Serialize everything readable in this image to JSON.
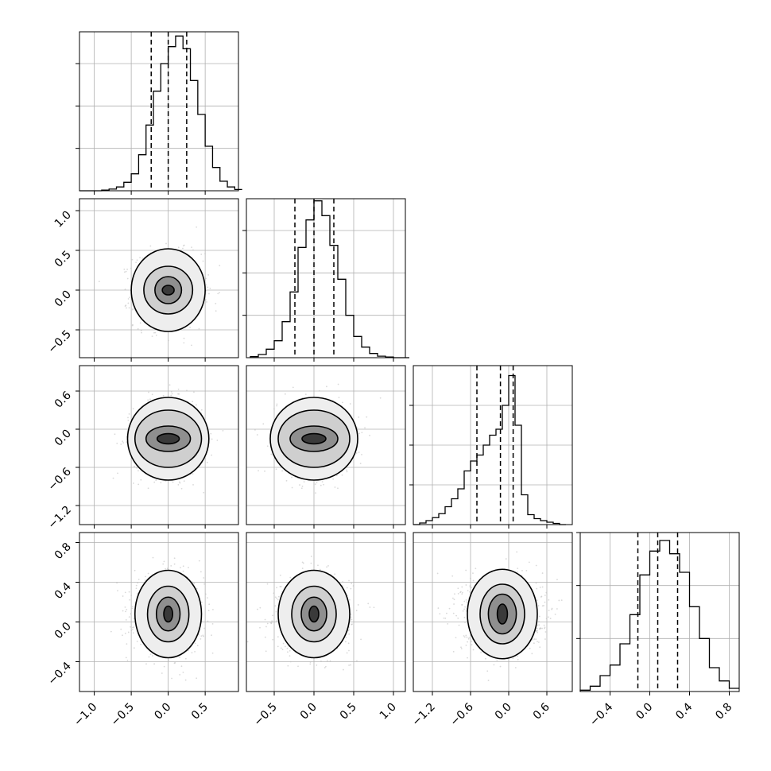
{
  "chart_data": {
    "type": "corner",
    "variables": 4,
    "histograms": [
      {
        "edges": [
          -1.2,
          -1.1,
          -1.0,
          -0.9,
          -0.8,
          -0.7,
          -0.6,
          -0.5,
          -0.4,
          -0.3,
          -0.2,
          -0.1,
          0.0,
          0.1,
          0.2,
          0.3,
          0.4,
          0.5,
          0.6,
          0.7,
          0.8,
          0.9,
          1.0
        ],
        "counts": [
          0,
          0,
          0,
          0.3,
          0.8,
          1.8,
          4,
          8,
          17,
          31,
          47,
          60,
          68,
          73,
          67,
          52,
          36,
          21,
          11,
          4.5,
          1.8,
          0.6
        ],
        "quantile_lines": [
          -0.23,
          0.0,
          0.25
        ],
        "range": [
          -1.2,
          0.95
        ],
        "ylim": [
          0,
          75
        ],
        "x_ticks": [
          -1.0,
          -0.5,
          0.0,
          0.5
        ],
        "x_tick_labels": [
          "−1.0",
          "−0.5",
          "0.0",
          "0.5"
        ],
        "y_ticks": [
          20,
          40,
          60
        ]
      },
      {
        "edges": [
          -0.8,
          -0.7,
          -0.6,
          -0.5,
          -0.4,
          -0.3,
          -0.2,
          -0.1,
          0.0,
          0.1,
          0.2,
          0.3,
          0.4,
          0.5,
          0.6,
          0.7,
          0.8,
          0.9,
          1.0,
          1.1,
          1.2
        ],
        "counts": [
          0.5,
          1.5,
          4,
          8,
          17,
          31,
          52,
          65,
          74,
          67,
          53,
          37,
          20,
          10,
          5,
          2,
          0.7,
          0.3,
          0,
          0
        ],
        "quantile_lines": [
          -0.24,
          0.0,
          0.25
        ],
        "range": [
          -0.85,
          1.15
        ],
        "ylim": [
          0,
          75
        ],
        "x_ticks": [
          -0.5,
          0.0,
          0.5,
          1.0
        ],
        "x_tick_labels": [
          "−0.5",
          "0.0",
          "0.5",
          "1.0"
        ],
        "y_ticks": [
          20,
          40,
          60
        ]
      },
      {
        "edges": [
          -1.5,
          -1.4,
          -1.3,
          -1.2,
          -1.1,
          -1.0,
          -0.9,
          -0.8,
          -0.7,
          -0.6,
          -0.5,
          -0.4,
          -0.3,
          -0.2,
          -0.1,
          0.0,
          0.1,
          0.2,
          0.3,
          0.4,
          0.5,
          0.6,
          0.7,
          0.8,
          0.9
        ],
        "counts": [
          0,
          0.8,
          2,
          3.5,
          5.5,
          9,
          13,
          18,
          27,
          32,
          35,
          40,
          45,
          48,
          60,
          75,
          50,
          15,
          5,
          3,
          2,
          1.2,
          0.6,
          0
        ],
        "quantile_lines": [
          -0.5,
          -0.13,
          0.07
        ],
        "range": [
          -1.5,
          1.0
        ],
        "ylim": [
          0,
          80
        ],
        "x_ticks": [
          -1.2,
          -0.6,
          0.0,
          0.6
        ],
        "x_tick_labels": [
          "−1.2",
          "−0.6",
          "0.0",
          "0.6"
        ],
        "y_ticks": [
          20,
          40,
          60
        ]
      },
      {
        "edges": [
          -0.7,
          -0.6,
          -0.5,
          -0.4,
          -0.3,
          -0.2,
          -0.1,
          0.0,
          0.1,
          0.2,
          0.3,
          0.4,
          0.5,
          0.6,
          0.7,
          0.8,
          0.9
        ],
        "counts": [
          0.5,
          2,
          6,
          10,
          18,
          29,
          44,
          53,
          57,
          52,
          45,
          32,
          20,
          9,
          4,
          1.2
        ],
        "quantile_lines": [
          -0.12,
          0.08,
          0.28
        ],
        "range": [
          -0.7,
          0.9
        ],
        "ylim": [
          0,
          60
        ],
        "x_ticks": [
          -0.4,
          0.0,
          0.4,
          0.8
        ],
        "x_tick_labels": [
          "−0.4",
          "0.0",
          "0.4",
          "0.8"
        ],
        "y_ticks": [
          20,
          40,
          60
        ]
      }
    ],
    "scatter_panels": [
      {
        "row": 1,
        "col": 0,
        "x_range": [
          -1.2,
          0.95
        ],
        "y_range": [
          -0.85,
          1.15
        ],
        "center": [
          0.0,
          0.0
        ],
        "sd": [
          0.22,
          0.22
        ],
        "contour_radii": [
          [
            0.08,
            0.06
          ],
          [
            0.18,
            0.17
          ],
          [
            0.33,
            0.3
          ],
          [
            0.5,
            0.52
          ]
        ]
      },
      {
        "row": 2,
        "col": 0,
        "x_range": [
          -1.2,
          0.95
        ],
        "y_range": [
          -1.5,
          1.0
        ],
        "center": [
          0.0,
          -0.15
        ],
        "sd": [
          0.22,
          0.28
        ],
        "contour_radii": [
          [
            0.15,
            0.08
          ],
          [
            0.3,
            0.2
          ],
          [
            0.45,
            0.45
          ],
          [
            0.55,
            0.65
          ]
        ]
      },
      {
        "row": 2,
        "col": 1,
        "x_range": [
          -0.85,
          1.15
        ],
        "y_range": [
          -1.5,
          1.0
        ],
        "center": [
          0.0,
          -0.15
        ],
        "sd": [
          0.22,
          0.28
        ],
        "contour_radii": [
          [
            0.15,
            0.08
          ],
          [
            0.3,
            0.2
          ],
          [
            0.45,
            0.45
          ],
          [
            0.55,
            0.65
          ]
        ]
      },
      {
        "row": 3,
        "col": 0,
        "x_range": [
          -1.2,
          0.95
        ],
        "y_range": [
          -0.7,
          0.9
        ],
        "center": [
          0.0,
          0.08
        ],
        "sd": [
          0.22,
          0.18
        ],
        "contour_radii": [
          [
            0.06,
            0.08
          ],
          [
            0.16,
            0.17
          ],
          [
            0.28,
            0.28
          ],
          [
            0.45,
            0.44
          ]
        ]
      },
      {
        "row": 3,
        "col": 1,
        "x_range": [
          -0.85,
          1.15
        ],
        "y_range": [
          -0.7,
          0.9
        ],
        "center": [
          0.0,
          0.08
        ],
        "sd": [
          0.22,
          0.18
        ],
        "contour_radii": [
          [
            0.06,
            0.08
          ],
          [
            0.16,
            0.17
          ],
          [
            0.28,
            0.28
          ],
          [
            0.45,
            0.44
          ]
        ]
      },
      {
        "row": 3,
        "col": 2,
        "x_range": [
          -1.5,
          1.0
        ],
        "y_range": [
          -0.7,
          0.9
        ],
        "center": [
          -0.1,
          0.08
        ],
        "sd": [
          0.3,
          0.18
        ],
        "contour_radii": [
          [
            0.08,
            0.1
          ],
          [
            0.22,
            0.2
          ],
          [
            0.35,
            0.3
          ],
          [
            0.55,
            0.45
          ]
        ]
      }
    ],
    "y_tick_labels": {
      "row1": {
        "ticks": [
          -0.5,
          0.0,
          0.5,
          1.0
        ],
        "labels": [
          "−0.5",
          "0.0",
          "0.5",
          "1.0"
        ]
      },
      "row2": {
        "ticks": [
          -1.2,
          -0.6,
          0.0,
          0.6
        ],
        "labels": [
          "−1.2",
          "−0.6",
          "0.0",
          "0.6"
        ]
      },
      "row3": {
        "ticks": [
          -0.4,
          0.0,
          0.4,
          0.8
        ],
        "labels": [
          "−0.4",
          "0.0",
          "0.4",
          "0.8"
        ]
      }
    },
    "colors": {
      "line": "#000000",
      "grid": "#b0b0b0",
      "scatter": "#bfbfbf"
    }
  }
}
